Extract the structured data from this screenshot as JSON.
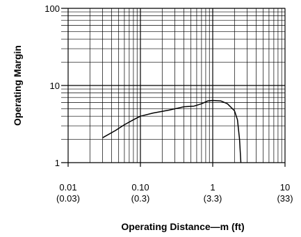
{
  "chart_data": {
    "type": "line",
    "title": "",
    "xlabel": "Operating Distance—m (ft)",
    "ylabel": "Operating Margin",
    "xscale": "log",
    "yscale": "log",
    "xlim": [
      0.01,
      10
    ],
    "ylim": [
      1,
      100
    ],
    "grid": true,
    "x_ticks": [
      {
        "value": 0.01,
        "label": "0.01",
        "sublabel": "(0.03)"
      },
      {
        "value": 0.1,
        "label": "0.10",
        "sublabel": "(0.3)"
      },
      {
        "value": 1,
        "label": "1",
        "sublabel": "(3.3)"
      },
      {
        "value": 10,
        "label": "10",
        "sublabel": "(33)"
      }
    ],
    "y_ticks": [
      {
        "value": 1,
        "label": "1"
      },
      {
        "value": 10,
        "label": "10"
      },
      {
        "value": 100,
        "label": "100"
      }
    ],
    "series": [
      {
        "points": [
          [
            0.03,
            2.1
          ],
          [
            0.045,
            2.6
          ],
          [
            0.06,
            3.1
          ],
          [
            0.08,
            3.6
          ],
          [
            0.1,
            4.0
          ],
          [
            0.15,
            4.4
          ],
          [
            0.25,
            4.8
          ],
          [
            0.4,
            5.3
          ],
          [
            0.55,
            5.4
          ],
          [
            0.7,
            5.8
          ],
          [
            0.85,
            6.3
          ],
          [
            1.0,
            6.4
          ],
          [
            1.3,
            6.3
          ],
          [
            1.6,
            5.8
          ],
          [
            2.0,
            4.7
          ],
          [
            2.2,
            3.6
          ],
          [
            2.35,
            2.0
          ],
          [
            2.45,
            1.0
          ]
        ]
      }
    ]
  }
}
